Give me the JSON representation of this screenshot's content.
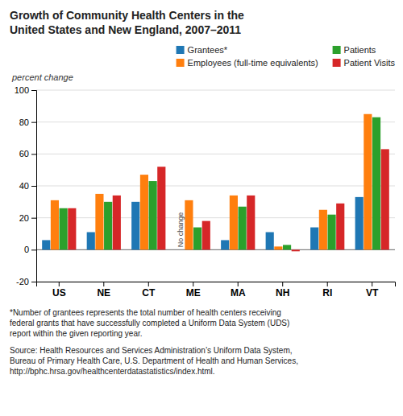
{
  "chart_data": {
    "type": "bar",
    "title": "Growth of Community Health Centers in the\nUnited States and New England, 2007–2011",
    "y_label": "percent change",
    "categories": [
      "US",
      "NE",
      "CT",
      "ME",
      "MA",
      "NH",
      "RI",
      "VT"
    ],
    "series": [
      {
        "name": "Grantees*",
        "values": [
          6,
          11,
          30,
          0,
          6,
          11,
          14,
          33
        ]
      },
      {
        "name": "Employees (full-time equivalents)",
        "values": [
          31,
          35,
          47,
          31,
          34,
          2,
          25,
          85
        ]
      },
      {
        "name": "Patients",
        "values": [
          26,
          30,
          43,
          14,
          27,
          3,
          22,
          83
        ]
      },
      {
        "name": "Patient Visits",
        "values": [
          26,
          34,
          52,
          18,
          34,
          -1,
          29,
          63
        ]
      }
    ],
    "ylim": [
      -20,
      100
    ],
    "yticks": [
      -20,
      0,
      20,
      40,
      60,
      80,
      100
    ],
    "grid": true,
    "legend": "top-right",
    "annotations": [
      {
        "text": "No change",
        "category": "ME",
        "series": "Grantees*"
      },
      {
        "text": "*Number of grantees represents the total number of health centers receiving\nfederal grants that have successfully completed a Uniform Data System (UDS)\nreport within the given reporting year."
      },
      {
        "text": "Source: Health Resources and Services Administration’s Uniform Data System,\nBureau of Primary Health Care, U.S. Department of Health and Human Services,\nhttp://bphc.hrsa.gov/healthcenterdatastatistics/index.html."
      }
    ]
  }
}
